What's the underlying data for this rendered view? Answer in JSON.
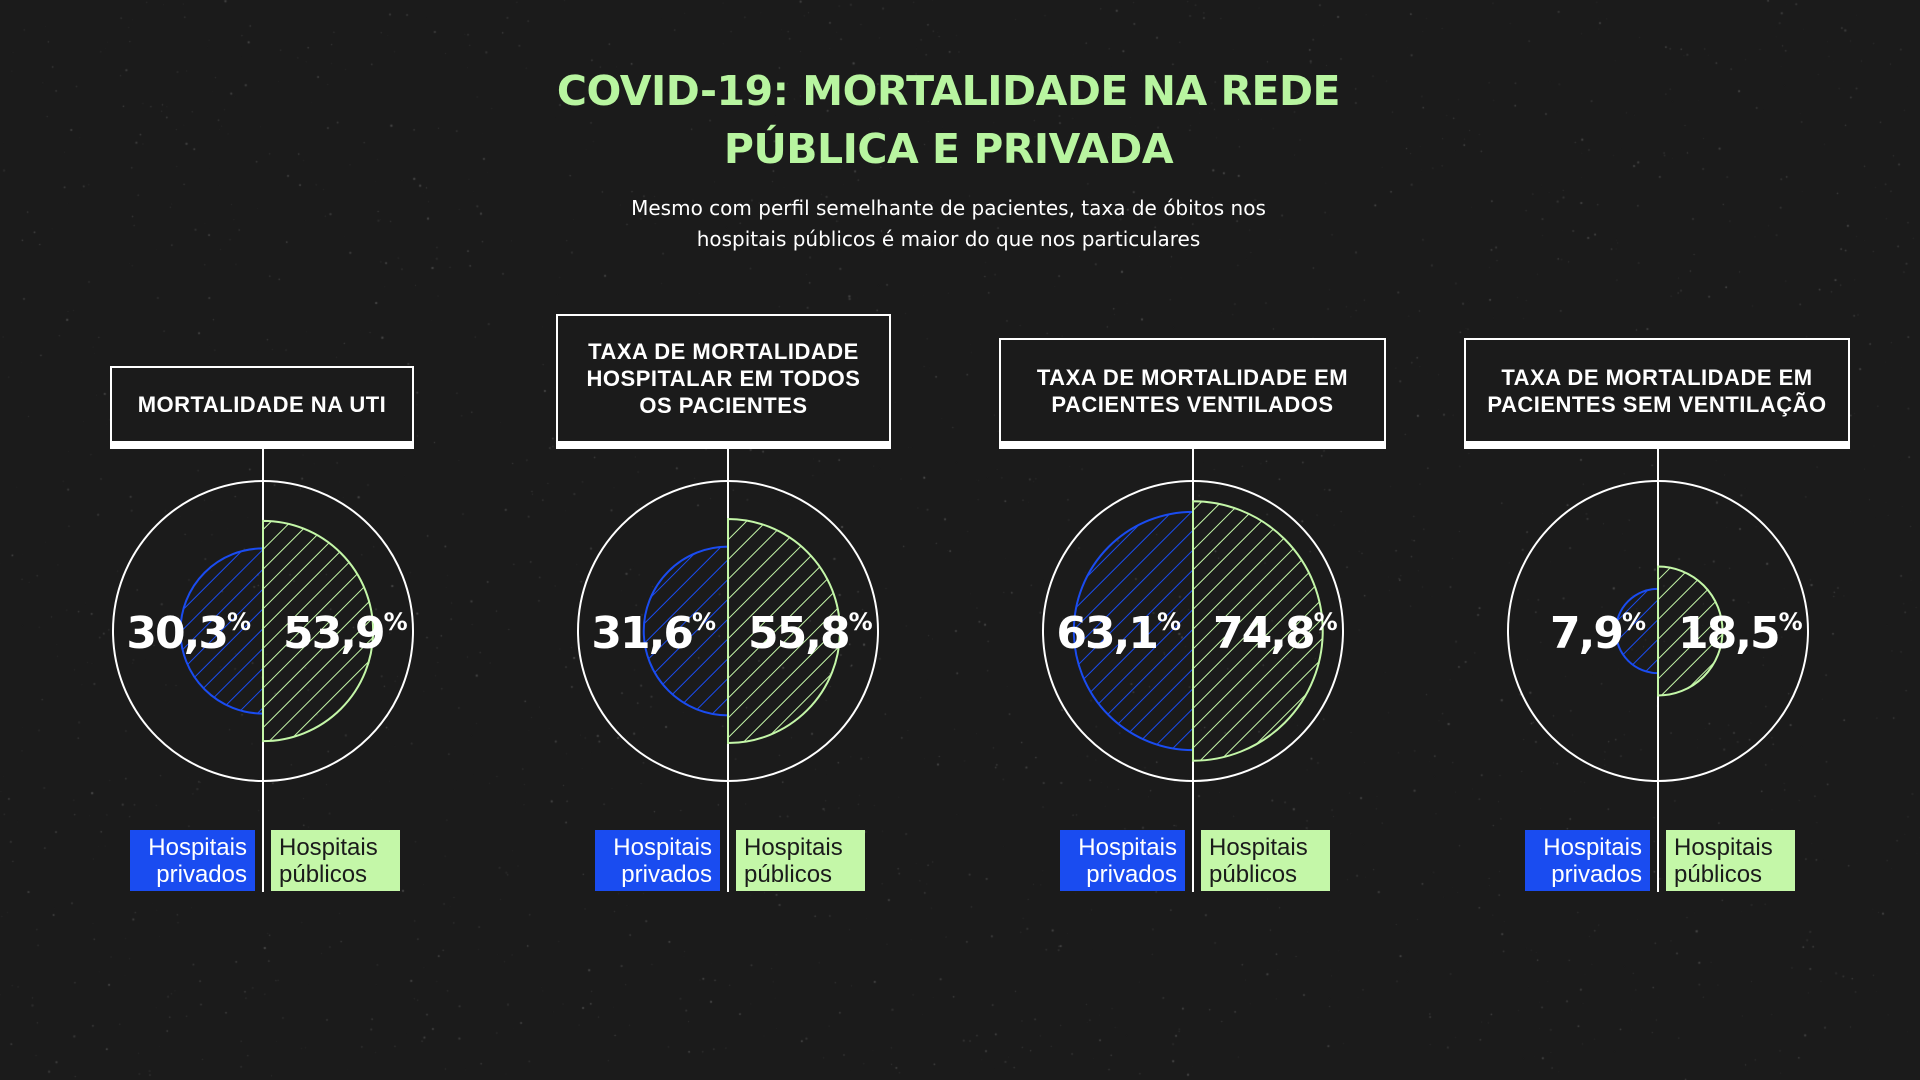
{
  "header": {
    "title_lines": [
      "COVID-19: MORTALIDADE NA REDE",
      "PÚBLICA E PRIVADA"
    ],
    "subtitle_lines": [
      "Mesmo com perfil semelhante de pacientes, taxa de óbitos nos",
      "hospitais públicos é maior do que nos particulares"
    ]
  },
  "legend": {
    "private_lines": [
      "Hospitais",
      "privados"
    ],
    "public_lines": [
      "Hospitais",
      "públicos"
    ]
  },
  "colors": {
    "background": "#1b1b1b",
    "title": "#b8f5a0",
    "private": "#1a4cf0",
    "public": "#c4f7a8",
    "outline": "#ffffff"
  },
  "chart_data": [
    {
      "type": "pie",
      "title_lines": [
        "MORTALIDADE NA UTI"
      ],
      "categories": [
        "Hospitais privados",
        "Hospitais públicos"
      ],
      "values": [
        30.3,
        53.9
      ],
      "labels": [
        "30,3",
        "53,9"
      ],
      "unit": "%",
      "max": 100
    },
    {
      "type": "pie",
      "title_lines": [
        "TAXA DE MORTALIDADE",
        "HOSPITALAR EM TODOS",
        "OS PACIENTES"
      ],
      "categories": [
        "Hospitais privados",
        "Hospitais públicos"
      ],
      "values": [
        31.6,
        55.8
      ],
      "labels": [
        "31,6",
        "55,8"
      ],
      "unit": "%",
      "max": 100
    },
    {
      "type": "pie",
      "title_lines": [
        "TAXA DE MORTALIDADE EM",
        "PACIENTES VENTILADOS"
      ],
      "categories": [
        "Hospitais privados",
        "Hospitais públicos"
      ],
      "values": [
        63.1,
        74.8
      ],
      "labels": [
        "63,1",
        "74,8"
      ],
      "unit": "%",
      "max": 100
    },
    {
      "type": "pie",
      "title_lines": [
        "TAXA DE MORTALIDADE EM",
        "PACIENTES SEM VENTILAÇÃO"
      ],
      "categories": [
        "Hospitais privados",
        "Hospitais públicos"
      ],
      "values": [
        7.9,
        18.5
      ],
      "labels": [
        "7,9",
        "18,5"
      ],
      "unit": "%",
      "max": 100
    }
  ]
}
